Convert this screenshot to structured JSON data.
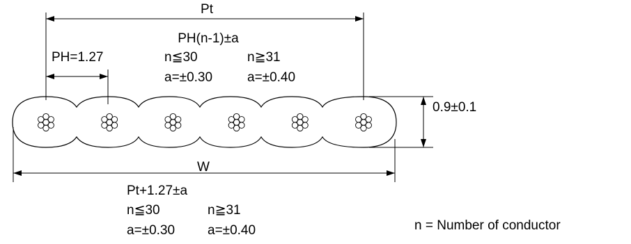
{
  "pt": {
    "label": "Pt",
    "formula": "PH(n-1)±a",
    "cond_le": "n≦30",
    "cond_ge": "n≧31",
    "tol_le": "a=±0.30",
    "tol_ge": "a=±0.40"
  },
  "ph": {
    "label": "PH=1.27"
  },
  "thickness": {
    "label": "0.9±0.1"
  },
  "w": {
    "label": "W",
    "formula": "Pt+1.27±a",
    "cond_le": "n≦30",
    "cond_ge": "n≧31",
    "tol_le": "a=±0.30",
    "tol_ge": "a=±0.40"
  },
  "note": "n = Number of conductor",
  "cable": {
    "conductor_count": 6,
    "strands_per_conductor": 7
  },
  "colors": {
    "line": "#000000",
    "background": "#ffffff"
  }
}
